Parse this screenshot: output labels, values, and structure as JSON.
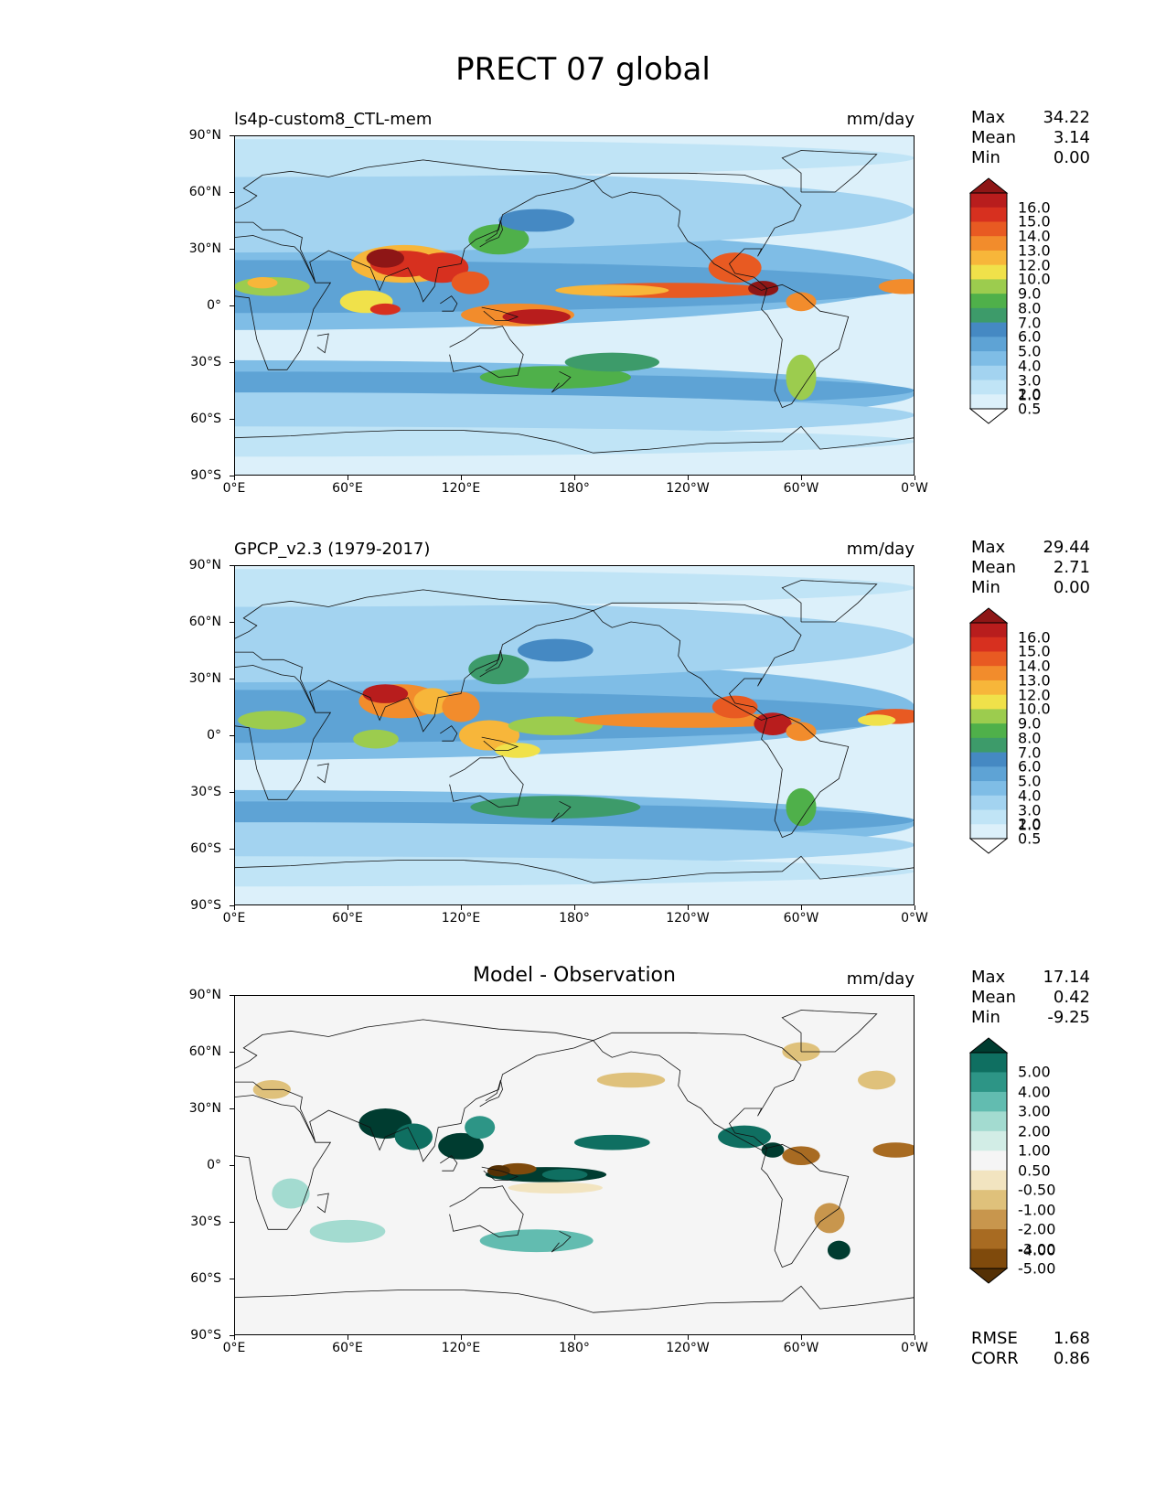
{
  "title": "PRECT 07 global",
  "x_labels": [
    "0°E",
    "60°E",
    "120°E",
    "180°",
    "120°W",
    "60°W",
    "0°W"
  ],
  "y_labels": [
    "90°N",
    "60°N",
    "30°N",
    "0°",
    "30°S",
    "60°S",
    "90°S"
  ],
  "panels": [
    {
      "title_left": "ls4p-custom8_CTL-mem",
      "title_center": "",
      "units": "mm/day",
      "stats": [
        {
          "label": "Max",
          "value": "34.22"
        },
        {
          "label": "Mean",
          "value": "3.14"
        },
        {
          "label": "Min",
          "value": "0.00"
        }
      ],
      "colorbar_labels": [
        "16.0",
        "15.0",
        "14.0",
        "13.0",
        "12.0",
        "10.0",
        "9.0",
        "8.0",
        "7.0",
        "6.0",
        "5.0",
        "4.0",
        "3.0",
        "2.0",
        "1.0",
        "0.5"
      ]
    },
    {
      "title_left": "GPCP_v2.3 (1979-2017)",
      "title_center": "",
      "units": "mm/day",
      "stats": [
        {
          "label": "Max",
          "value": "29.44"
        },
        {
          "label": "Mean",
          "value": "2.71"
        },
        {
          "label": "Min",
          "value": "0.00"
        }
      ],
      "colorbar_labels": [
        "16.0",
        "15.0",
        "14.0",
        "13.0",
        "12.0",
        "10.0",
        "9.0",
        "8.0",
        "7.0",
        "6.0",
        "5.0",
        "4.0",
        "3.0",
        "2.0",
        "1.0",
        "0.5"
      ]
    },
    {
      "title_left": "",
      "title_center": "Model - Observation",
      "units": "mm/day",
      "stats": [
        {
          "label": "Max",
          "value": "17.14"
        },
        {
          "label": "Mean",
          "value": "0.42"
        },
        {
          "label": "Min",
          "value": "-9.25"
        }
      ],
      "colorbar_labels": [
        "5.00",
        "4.00",
        "3.00",
        "2.00",
        "1.00",
        "0.50",
        "-0.50",
        "-1.00",
        "-2.00",
        "-3.00",
        "-4.00",
        "-5.00"
      ],
      "bottom_stats": [
        {
          "label": "RMSE",
          "value": "1.68"
        },
        {
          "label": "CORR",
          "value": "0.86"
        }
      ]
    }
  ],
  "colors": {
    "precip_scale": [
      "#ffffff",
      "#dcf0fa",
      "#c0e4f6",
      "#a3d3f0",
      "#7fbde6",
      "#5ea3d5",
      "#4589c3",
      "#3d9b6a",
      "#4fb04a",
      "#9ccc4e",
      "#f0e14a",
      "#f7b63a",
      "#f28c2c",
      "#e85a22",
      "#d7301f",
      "#b81d1d",
      "#8e1616"
    ],
    "diff_scale": [
      "#543005",
      "#7f4a0c",
      "#a86b22",
      "#c8964d",
      "#dfc17b",
      "#f2e4c0",
      "#f5f5f5",
      "#d2ede6",
      "#a3dbd0",
      "#62bcb0",
      "#2d9586",
      "#0f6f61",
      "#003c30"
    ]
  }
}
